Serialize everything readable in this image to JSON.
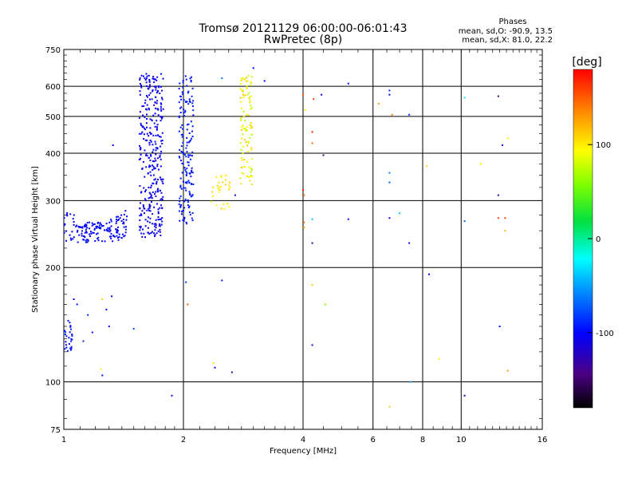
{
  "chart_data": {
    "type": "scatter",
    "title": "Tromsø 20121129 06:00:00-06:01:43",
    "subtitle": "RwPretec (8p)",
    "stats": {
      "header": "Phases",
      "line1": "mean, sd,O: -90.9, 13.5",
      "line2": "mean, sd,X:  81.0, 22.2"
    },
    "xlabel": "Frequency [MHz]",
    "ylabel": "Stationary phase Virtual Height [km]",
    "x_scale": "log",
    "y_scale": "log",
    "xlim": [
      1,
      16
    ],
    "ylim": [
      75,
      750
    ],
    "x_ticks": [
      1,
      2,
      4,
      6,
      8,
      10,
      16
    ],
    "y_ticks": [
      75,
      100,
      200,
      300,
      400,
      500,
      600,
      750
    ],
    "grid": true,
    "colorbar": {
      "label": "[deg]",
      "range": [
        -180,
        180
      ],
      "ticks": [
        100,
        0,
        -100
      ]
    },
    "clusters": [
      {
        "f": [
          1.0,
          1.45
        ],
        "h": [
          228,
          285
        ],
        "phase": [
          -108,
          -95
        ],
        "n": 160,
        "trace": "ushape"
      },
      {
        "f": [
          1.55,
          1.78
        ],
        "h": [
          240,
          650
        ],
        "phase": [
          -112,
          -98
        ],
        "n": 330
      },
      {
        "f": [
          1.95,
          2.12
        ],
        "h": [
          260,
          640
        ],
        "phase": [
          -100,
          -88
        ],
        "n": 170
      },
      {
        "f": [
          2.35,
          2.62
        ],
        "h": [
          285,
          350
        ],
        "phase": [
          85,
          115
        ],
        "n": 30
      },
      {
        "f": [
          2.78,
          2.98
        ],
        "h": [
          330,
          640
        ],
        "phase": [
          70,
          115
        ],
        "n": 100
      },
      {
        "f": [
          1.0,
          1.05
        ],
        "h": [
          120,
          145
        ],
        "phase": [
          -110,
          -85
        ],
        "n": 26
      }
    ],
    "points": [
      {
        "x": 1.33,
        "y": 420,
        "phase": -110
      },
      {
        "x": 1.06,
        "y": 165,
        "phase": -100
      },
      {
        "x": 1.08,
        "y": 160,
        "phase": -95
      },
      {
        "x": 1.15,
        "y": 150,
        "phase": -90
      },
      {
        "x": 1.25,
        "y": 165,
        "phase": 110
      },
      {
        "x": 1.28,
        "y": 155,
        "phase": -100
      },
      {
        "x": 1.32,
        "y": 168,
        "phase": -105
      },
      {
        "x": 1.3,
        "y": 140,
        "phase": -110
      },
      {
        "x": 1.18,
        "y": 135,
        "phase": -100
      },
      {
        "x": 1.12,
        "y": 128,
        "phase": -90
      },
      {
        "x": 1.5,
        "y": 138,
        "phase": -80
      },
      {
        "x": 1.24,
        "y": 108,
        "phase": 100
      },
      {
        "x": 1.25,
        "y": 104,
        "phase": -95
      },
      {
        "x": 1.87,
        "y": 92,
        "phase": -115
      },
      {
        "x": 2.03,
        "y": 183,
        "phase": -85
      },
      {
        "x": 2.05,
        "y": 160,
        "phase": 150
      },
      {
        "x": 2.38,
        "y": 112,
        "phase": 105
      },
      {
        "x": 2.4,
        "y": 109,
        "phase": -110
      },
      {
        "x": 2.5,
        "y": 185,
        "phase": -95
      },
      {
        "x": 2.65,
        "y": 106,
        "phase": -130
      },
      {
        "x": 2.5,
        "y": 630,
        "phase": -60
      },
      {
        "x": 3.2,
        "y": 620,
        "phase": -100
      },
      {
        "x": 3.0,
        "y": 670,
        "phase": -100
      },
      {
        "x": 2.7,
        "y": 310,
        "phase": -125
      },
      {
        "x": 4.0,
        "y": 570,
        "phase": 150
      },
      {
        "x": 4.05,
        "y": 520,
        "phase": 100
      },
      {
        "x": 4.25,
        "y": 555,
        "phase": 160
      },
      {
        "x": 4.45,
        "y": 570,
        "phase": -110
      },
      {
        "x": 4.22,
        "y": 455,
        "phase": 170
      },
      {
        "x": 4.22,
        "y": 425,
        "phase": 145
      },
      {
        "x": 4.5,
        "y": 395,
        "phase": -150
      },
      {
        "x": 4.0,
        "y": 320,
        "phase": 170
      },
      {
        "x": 4.02,
        "y": 310,
        "phase": 150
      },
      {
        "x": 4.02,
        "y": 263,
        "phase": 150
      },
      {
        "x": 4.02,
        "y": 255,
        "phase": 130
      },
      {
        "x": 4.22,
        "y": 268,
        "phase": -40
      },
      {
        "x": 4.22,
        "y": 232,
        "phase": -130
      },
      {
        "x": 4.22,
        "y": 180,
        "phase": 110
      },
      {
        "x": 4.55,
        "y": 160,
        "phase": 60
      },
      {
        "x": 4.22,
        "y": 125,
        "phase": -115
      },
      {
        "x": 5.2,
        "y": 610,
        "phase": -100
      },
      {
        "x": 5.2,
        "y": 268,
        "phase": -110
      },
      {
        "x": 6.2,
        "y": 540,
        "phase": 130
      },
      {
        "x": 6.6,
        "y": 585,
        "phase": -90
      },
      {
        "x": 6.6,
        "y": 570,
        "phase": -105
      },
      {
        "x": 6.7,
        "y": 505,
        "phase": 140
      },
      {
        "x": 6.6,
        "y": 355,
        "phase": -60
      },
      {
        "x": 6.6,
        "y": 335,
        "phase": -70
      },
      {
        "x": 6.6,
        "y": 270,
        "phase": -110
      },
      {
        "x": 7.0,
        "y": 278,
        "phase": -40
      },
      {
        "x": 7.4,
        "y": 505,
        "phase": -85
      },
      {
        "x": 7.4,
        "y": 232,
        "phase": -110
      },
      {
        "x": 7.45,
        "y": 100,
        "phase": -50
      },
      {
        "x": 6.6,
        "y": 86,
        "phase": 110
      },
      {
        "x": 8.2,
        "y": 370,
        "phase": 110
      },
      {
        "x": 8.3,
        "y": 192,
        "phase": -110
      },
      {
        "x": 8.8,
        "y": 115,
        "phase": 100
      },
      {
        "x": 10.2,
        "y": 560,
        "phase": -30
      },
      {
        "x": 10.2,
        "y": 265,
        "phase": -70
      },
      {
        "x": 10.2,
        "y": 92,
        "phase": -130
      },
      {
        "x": 11.2,
        "y": 375,
        "phase": 100
      },
      {
        "x": 12.4,
        "y": 565,
        "phase": -160
      },
      {
        "x": 12.4,
        "y": 310,
        "phase": -130
      },
      {
        "x": 12.4,
        "y": 270,
        "phase": 160
      },
      {
        "x": 12.7,
        "y": 420,
        "phase": -110
      },
      {
        "x": 12.9,
        "y": 270,
        "phase": 160
      },
      {
        "x": 12.9,
        "y": 250,
        "phase": 120
      },
      {
        "x": 13.1,
        "y": 438,
        "phase": 100
      },
      {
        "x": 12.5,
        "y": 140,
        "phase": -100
      },
      {
        "x": 13.1,
        "y": 107,
        "phase": 130
      }
    ]
  }
}
